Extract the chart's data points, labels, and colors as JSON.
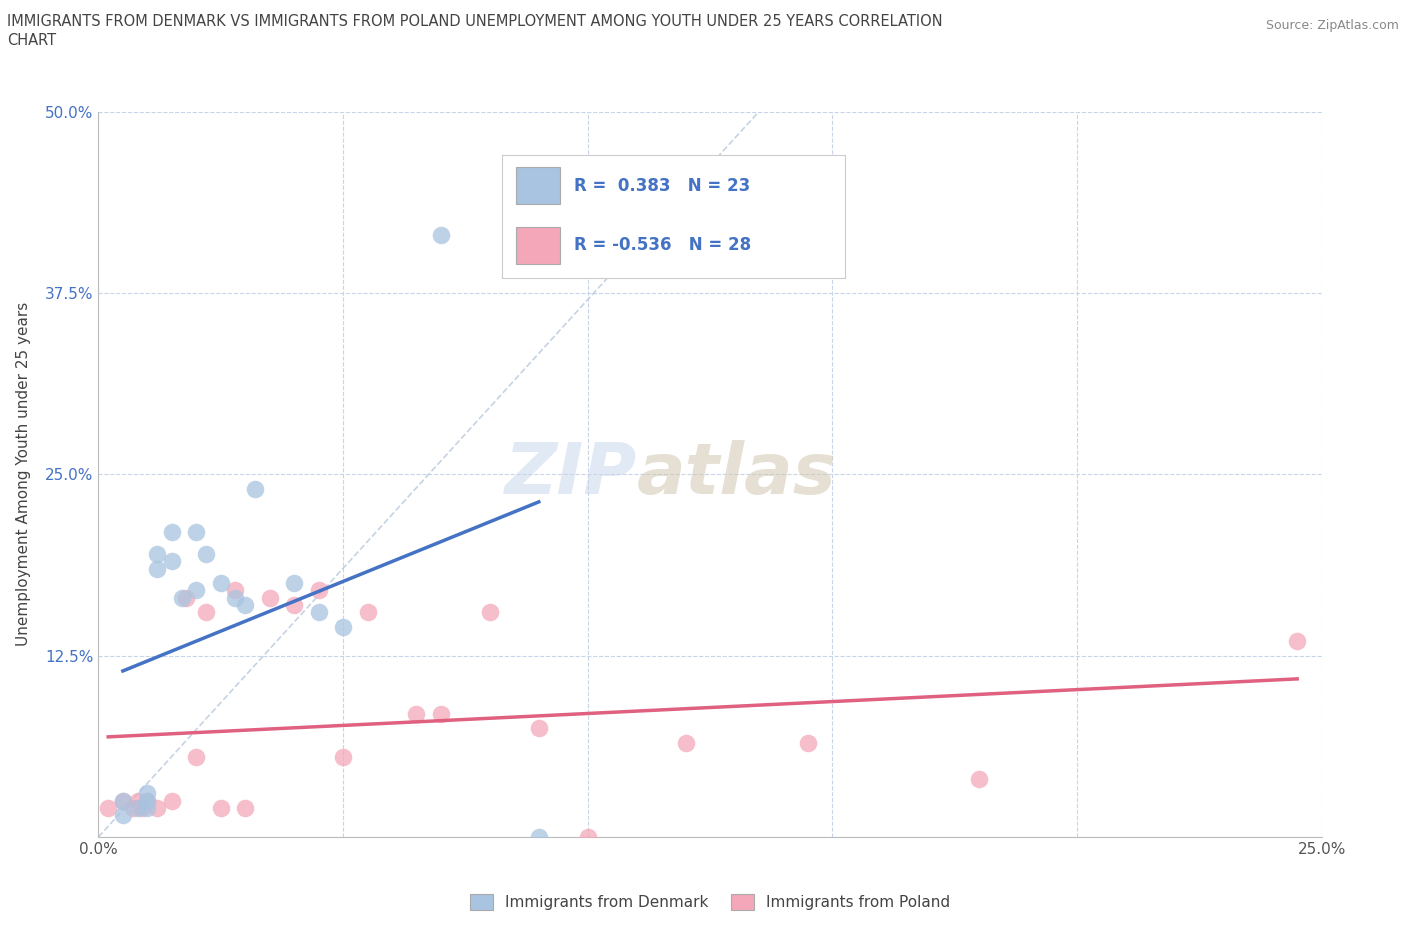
{
  "title_line1": "IMMIGRANTS FROM DENMARK VS IMMIGRANTS FROM POLAND UNEMPLOYMENT AMONG YOUTH UNDER 25 YEARS CORRELATION",
  "title_line2": "CHART",
  "source": "Source: ZipAtlas.com",
  "ylabel": "Unemployment Among Youth under 25 years",
  "xlim": [
    0,
    0.25
  ],
  "ylim": [
    0,
    0.5
  ],
  "xticks": [
    0.0,
    0.05,
    0.1,
    0.15,
    0.2,
    0.25
  ],
  "xticklabels": [
    "0.0%",
    "",
    "",
    "",
    "",
    "25.0%"
  ],
  "ytick_positions": [
    0.0,
    0.125,
    0.25,
    0.375,
    0.5
  ],
  "ytick_labels": [
    "",
    "12.5%",
    "25.0%",
    "37.5%",
    "50.0%"
  ],
  "watermark_zip": "ZIP",
  "watermark_atlas": "atlas",
  "denmark_R": 0.383,
  "denmark_N": 23,
  "poland_R": -0.536,
  "poland_N": 28,
  "denmark_color": "#a8c4e0",
  "denmark_line_color": "#4472c4",
  "poland_color": "#f4a7b9",
  "poland_line_color": "#e06080",
  "grid_color": "#c8d4e8",
  "background_color": "#ffffff",
  "denmark_points_x": [
    0.005,
    0.005,
    0.008,
    0.01,
    0.01,
    0.01,
    0.012,
    0.012,
    0.015,
    0.015,
    0.017,
    0.02,
    0.02,
    0.022,
    0.025,
    0.028,
    0.03,
    0.032,
    0.04,
    0.045,
    0.05,
    0.07,
    0.09
  ],
  "denmark_points_y": [
    0.015,
    0.025,
    0.02,
    0.02,
    0.025,
    0.03,
    0.185,
    0.195,
    0.19,
    0.21,
    0.165,
    0.17,
    0.21,
    0.195,
    0.175,
    0.165,
    0.16,
    0.24,
    0.175,
    0.155,
    0.145,
    0.415,
    0.0
  ],
  "poland_points_x": [
    0.002,
    0.005,
    0.007,
    0.008,
    0.009,
    0.01,
    0.012,
    0.015,
    0.018,
    0.02,
    0.022,
    0.025,
    0.028,
    0.03,
    0.035,
    0.04,
    0.045,
    0.05,
    0.055,
    0.065,
    0.07,
    0.08,
    0.09,
    0.1,
    0.12,
    0.145,
    0.18,
    0.245
  ],
  "poland_points_y": [
    0.02,
    0.025,
    0.02,
    0.025,
    0.02,
    0.025,
    0.02,
    0.025,
    0.165,
    0.055,
    0.155,
    0.02,
    0.17,
    0.02,
    0.165,
    0.16,
    0.17,
    0.055,
    0.155,
    0.085,
    0.085,
    0.155,
    0.075,
    0.0,
    0.065,
    0.065,
    0.04,
    0.135
  ]
}
